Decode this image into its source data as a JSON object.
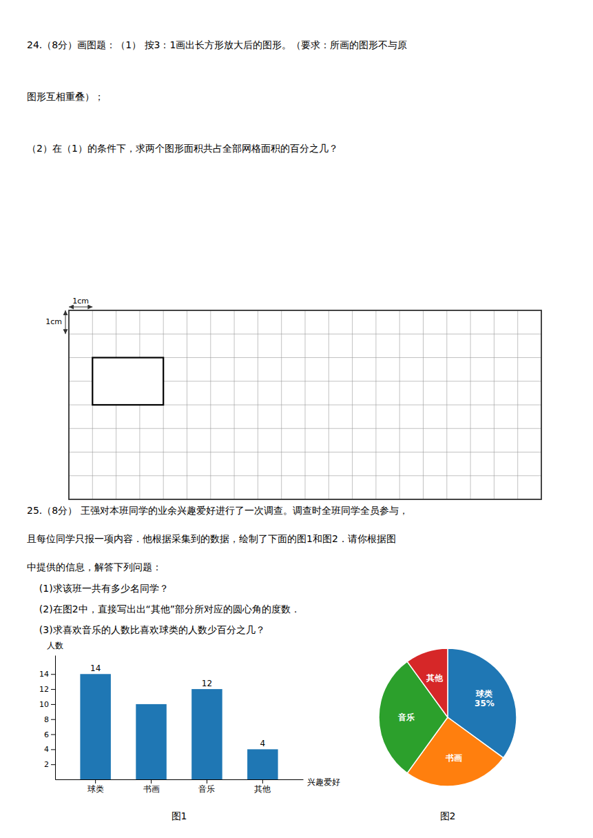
{
  "chart_data": [
    {
      "type": "text",
      "annotations": [
        "24.（8分）画图题：（1） 按3：1画出长方形放大后的图形。（要求：所画的图形不与原",
        "图形互相重叠）；",
        "（2）在（1）的条件下，求两个图形面积共占全部网格面积的百分之几？"
      ]
    },
    {
      "type": "grid",
      "xlim": [
        0,
        20
      ],
      "ylim": [
        0,
        8
      ],
      "xticks": [
        0,
        1,
        2,
        3,
        4,
        5,
        6,
        7,
        8,
        9,
        10,
        11,
        12,
        13,
        14,
        15,
        16,
        17,
        18,
        19,
        20
      ],
      "yticks": [
        0,
        1,
        2,
        3,
        4,
        5,
        6,
        7,
        8
      ],
      "grid": true,
      "tick_labels": false,
      "x": [
        1,
        4
      ],
      "values": [
        4,
        6
      ],
      "annotations": [
        "1cm",
        "1cm"
      ]
    },
    {
      "type": "text",
      "annotations": [
        "25.（8分） 王强对本班同学的业余兴趣爱好进行了一次调查。调查时全班同学全员参与，",
        "且每位同学只报一项内容．他根据采集到的数据，绘制了下面的图1和图2．请你根据图",
        "中提供的信息，解答下列问题：",
        "    (1)求该班一共有多少名同学？",
        "    (2)在图2中，直接写出出“其他”部分所对应的圆心角的度数．",
        "    (3)求喜欢音乐的人数比喜欢球类的人数少百分之几？"
      ]
    },
    {
      "type": "bar",
      "title": "图1",
      "x_label": "兴趣爱好",
      "y_label": "人数",
      "categories": [
        "球类",
        "书画",
        "音乐",
        "其他"
      ],
      "values": [
        14,
        10,
        12,
        4
      ],
      "data_labels": true,
      "value_labels": [
        "14",
        null,
        "12",
        "4"
      ],
      "ylim": [
        0,
        16.5
      ],
      "yticks": [
        2,
        4,
        6,
        8,
        10,
        12,
        14
      ]
    },
    {
      "type": "pie",
      "title": "图2",
      "categories": [
        "球类",
        "书画",
        "音乐",
        "其他"
      ],
      "values": [
        35,
        25,
        30,
        10
      ],
      "data_labels": true,
      "value_labels": [
        "35%",
        null,
        null,
        null
      ]
    }
  ]
}
